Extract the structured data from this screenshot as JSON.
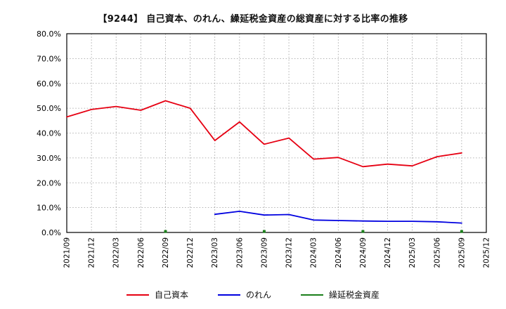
{
  "title": "【9244】 自己資本、のれん、繰延税金資産の総資産に対する比率の推移",
  "chart_data": {
    "type": "line",
    "title": "【9244】 自己資本、のれん、繰延税金資産の総資産に対する比率の推移",
    "categories": [
      "2021/09",
      "2021/12",
      "2022/03",
      "2022/06",
      "2022/09",
      "2022/12",
      "2023/03",
      "2023/06",
      "2023/09",
      "2023/12",
      "2024/03",
      "2024/06",
      "2024/09",
      "2024/12",
      "2025/03",
      "2025/06",
      "2025/09",
      "2025/12"
    ],
    "ylim": [
      0,
      80
    ],
    "ytick_step": 10,
    "ytick_format_suffix": "%",
    "grid": true,
    "legend_position": "bottom",
    "series": [
      {
        "name": "自己資本",
        "color": "#e60012",
        "marker": false,
        "values": [
          46.5,
          49.5,
          50.7,
          49.2,
          53.0,
          50.0,
          37.0,
          44.5,
          35.5,
          38.0,
          29.5,
          30.2,
          26.5,
          27.5,
          26.8,
          30.5,
          32.0,
          null
        ]
      },
      {
        "name": "のれん",
        "color": "#0000e0",
        "marker": false,
        "values": [
          null,
          null,
          null,
          null,
          null,
          null,
          7.3,
          8.5,
          7.0,
          7.2,
          5.0,
          4.8,
          4.6,
          4.5,
          4.5,
          4.3,
          3.8,
          null
        ]
      },
      {
        "name": "繰延税金資産",
        "color": "#1a7f1a",
        "marker": true,
        "values": [
          null,
          null,
          null,
          null,
          0.4,
          null,
          null,
          null,
          0.4,
          null,
          null,
          null,
          0.4,
          null,
          null,
          null,
          0.4,
          null
        ]
      }
    ]
  },
  "legend": {
    "items": [
      {
        "label": "自己資本",
        "color": "#e60012"
      },
      {
        "label": "のれん",
        "color": "#0000e0"
      },
      {
        "label": "繰延税金資産",
        "color": "#1a7f1a"
      }
    ]
  }
}
